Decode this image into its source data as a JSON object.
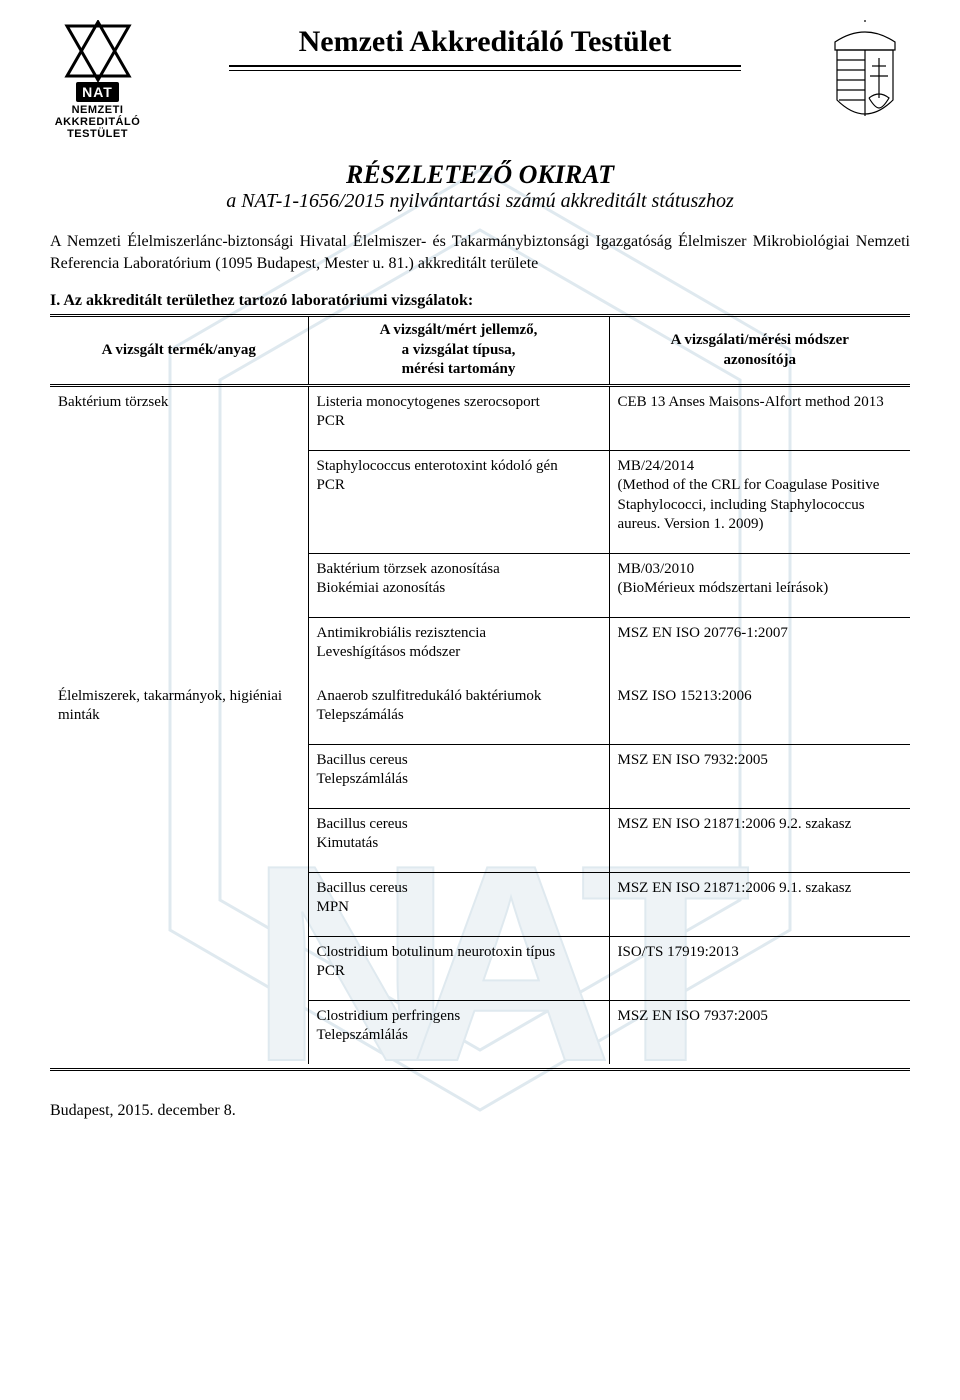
{
  "colors": {
    "text": "#000000",
    "background": "#ffffff",
    "watermark": "#dfe9ef",
    "watermark_letters": "#eef3f6",
    "rule": "#000000"
  },
  "header": {
    "org_title": "Nemzeti Akkreditáló Testület",
    "logo_left_box": "NAT",
    "logo_left_lines": "NEMZETI\nAKKREDITÁLÓ\nTESTÜLET"
  },
  "doc": {
    "title": "RÉSZLETEZŐ OKIRAT",
    "subtitle": "a NAT-1-1656/2015 nyilvántartási számú akkreditált státuszhoz"
  },
  "intro": "A Nemzeti Élelmiszerlánc-biztonsági Hivatal Élelmiszer- és Takarmánybiztonsági Igazgatóság Élelmiszer Mikrobiológiai Nemzeti Referencia Laboratórium (1095 Budapest, Mester u. 81.) akkreditált területe",
  "section_heading": "I. Az akkreditált területhez tartozó laboratóriumi vizsgálatok:",
  "table": {
    "columns": [
      "A vizsgált termék/anyag",
      "A vizsgált/mért jellemző,\na vizsgálat típusa,\nmérési tartomány",
      "A vizsgálati/mérési módszer\nazonosítója"
    ],
    "col_widths_pct": [
      30,
      35,
      35
    ],
    "border_color": "#000000",
    "header_border": "double",
    "groups": [
      {
        "material": "Baktérium törzsek",
        "rows": [
          {
            "param": "Listeria monocytogenes szerocsoport\nPCR",
            "method": "CEB 13 Anses Maisons-Alfort method 2013"
          },
          {
            "param": "Staphylococcus enterotoxint kódoló gén\nPCR",
            "method": "MB/24/2014\n(Method of the CRL for Coagulase Positive Staphylococci, including Staphylococcus aureus. Version 1. 2009)"
          },
          {
            "param": "Baktérium törzsek azonosítása\nBiokémiai azonosítás",
            "method": "MB/03/2010\n(BioMérieux módszertani leírások)"
          },
          {
            "param": "Antimikrobiális rezisztencia\nLeveshígításos módszer",
            "method": "MSZ EN ISO 20776-1:2007"
          }
        ]
      },
      {
        "material": "Élelmiszerek, takarmányok, higiéniai minták",
        "rows": [
          {
            "param": "Anaerob szulfitredukáló baktériumok\nTelepszámálás",
            "method": "MSZ ISO 15213:2006"
          },
          {
            "param": "Bacillus cereus\nTelepszámlálás",
            "method": "MSZ EN ISO 7932:2005"
          },
          {
            "param": "Bacillus cereus\nKimutatás",
            "method": "MSZ EN ISO 21871:2006 9.2. szakasz"
          },
          {
            "param": "Bacillus cereus\nMPN",
            "method": "MSZ EN ISO 21871:2006 9.1. szakasz"
          },
          {
            "param": "Clostridium botulinum neurotoxin típus\nPCR",
            "method": "ISO/TS 17919:2013"
          },
          {
            "param": "Clostridium perfringens\nTelepszámlálás",
            "method": "MSZ EN ISO 7937:2005"
          }
        ]
      }
    ]
  },
  "footer": {
    "date": "Budapest, 2015. december 8."
  }
}
